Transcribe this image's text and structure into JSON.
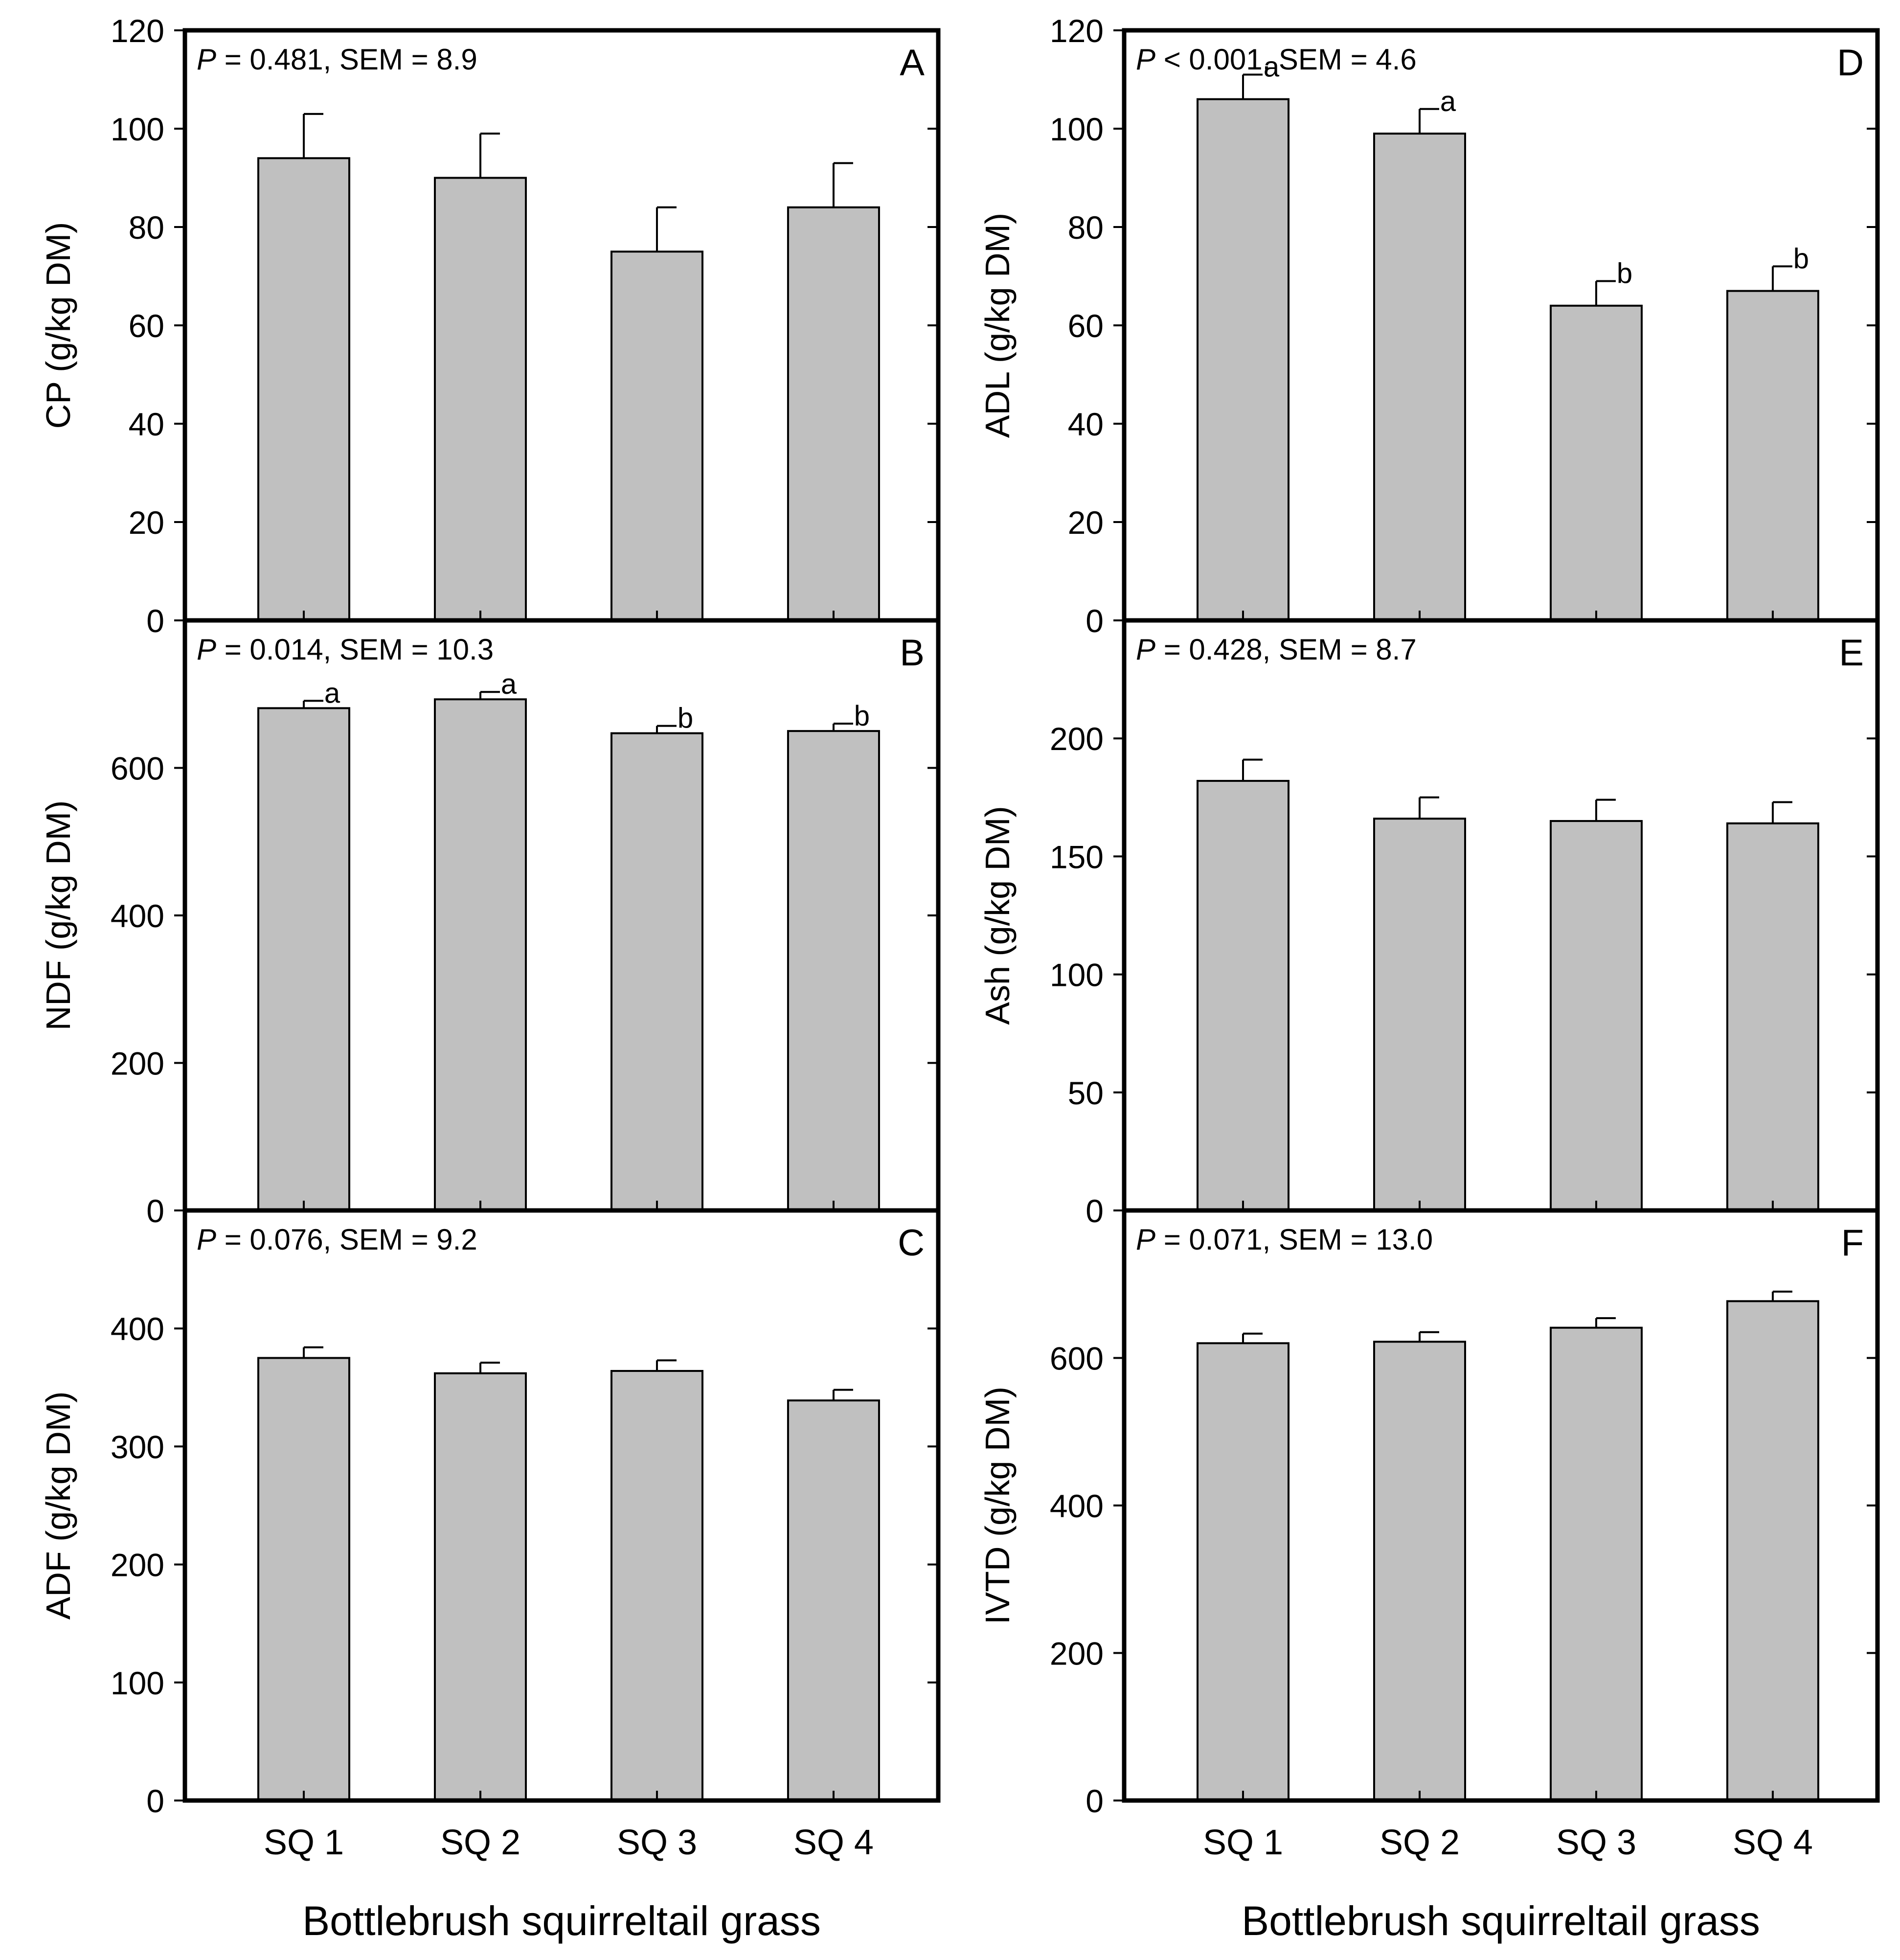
{
  "figure": {
    "categories": [
      "SQ 1",
      "SQ 2",
      "SQ 3",
      "SQ 4"
    ],
    "xlabel": "Bottlebrush squirreltail grass",
    "bar_color": "#c0c0c0",
    "axis_color": "#000000"
  },
  "chart_data": [
    {
      "type": "bar",
      "panel": "A",
      "ylabel": "CP (g/kg DM)",
      "stat_p": "P",
      "stat_rest": " = 0.481, SEM = 8.9",
      "ylim": [
        0,
        120
      ],
      "yticks": [
        0,
        20,
        40,
        60,
        80,
        100,
        120
      ],
      "categories": [
        "SQ 1",
        "SQ 2",
        "SQ 3",
        "SQ 4"
      ],
      "values": [
        94,
        90,
        75,
        84
      ],
      "errors": [
        9,
        9,
        9,
        9
      ],
      "letters": [
        "",
        "",
        "",
        ""
      ]
    },
    {
      "type": "bar",
      "panel": "B",
      "ylabel": "NDF (g/kg DM)",
      "stat_p": "P",
      "stat_rest": " = 0.014, SEM = 10.3",
      "ylim": [
        0,
        800
      ],
      "yticks": [
        0,
        200,
        400,
        600
      ],
      "categories": [
        "SQ 1",
        "SQ 2",
        "SQ 3",
        "SQ 4"
      ],
      "values": [
        681,
        693,
        647,
        650
      ],
      "errors": [
        10,
        10,
        10,
        10
      ],
      "letters": [
        "a",
        "a",
        "b",
        "b"
      ]
    },
    {
      "type": "bar",
      "panel": "C",
      "ylabel": "ADF (g/kg DM)",
      "stat_p": "P",
      "stat_rest": " = 0.076, SEM = 9.2",
      "ylim": [
        0,
        500
      ],
      "yticks": [
        0,
        100,
        200,
        300,
        400
      ],
      "categories": [
        "SQ 1",
        "SQ 2",
        "SQ 3",
        "SQ 4"
      ],
      "values": [
        375,
        362,
        364,
        339
      ],
      "errors": [
        9,
        9,
        9,
        9
      ],
      "letters": [
        "",
        "",
        "",
        ""
      ]
    },
    {
      "type": "bar",
      "panel": "D",
      "ylabel": "ADL (g/kg DM)",
      "stat_p": "P",
      "stat_rest": " < 0.001, SEM = 4.6",
      "ylim": [
        0,
        120
      ],
      "yticks": [
        0,
        20,
        40,
        60,
        80,
        100,
        120
      ],
      "categories": [
        "SQ 1",
        "SQ 2",
        "SQ 3",
        "SQ 4"
      ],
      "values": [
        106,
        99,
        64,
        67
      ],
      "errors": [
        5,
        5,
        5,
        5
      ],
      "letters": [
        "a",
        "a",
        "b",
        "b"
      ]
    },
    {
      "type": "bar",
      "panel": "E",
      "ylabel": "Ash (g/kg DM)",
      "stat_p": "P",
      "stat_rest": " = 0.428, SEM = 8.7",
      "ylim": [
        0,
        250
      ],
      "yticks": [
        0,
        50,
        100,
        150,
        200
      ],
      "categories": [
        "SQ 1",
        "SQ 2",
        "SQ 3",
        "SQ 4"
      ],
      "values": [
        182,
        166,
        165,
        164
      ],
      "errors": [
        9,
        9,
        9,
        9
      ],
      "letters": [
        "",
        "",
        "",
        ""
      ]
    },
    {
      "type": "bar",
      "panel": "F",
      "ylabel": "IVTD (g/kg DM)",
      "stat_p": "P",
      "stat_rest": " = 0.071, SEM = 13.0",
      "ylim": [
        0,
        800
      ],
      "yticks": [
        0,
        200,
        400,
        600
      ],
      "categories": [
        "SQ 1",
        "SQ 2",
        "SQ 3",
        "SQ 4"
      ],
      "values": [
        620,
        622,
        641,
        677
      ],
      "errors": [
        13,
        13,
        13,
        13
      ],
      "letters": [
        "",
        "",
        "",
        ""
      ]
    }
  ]
}
